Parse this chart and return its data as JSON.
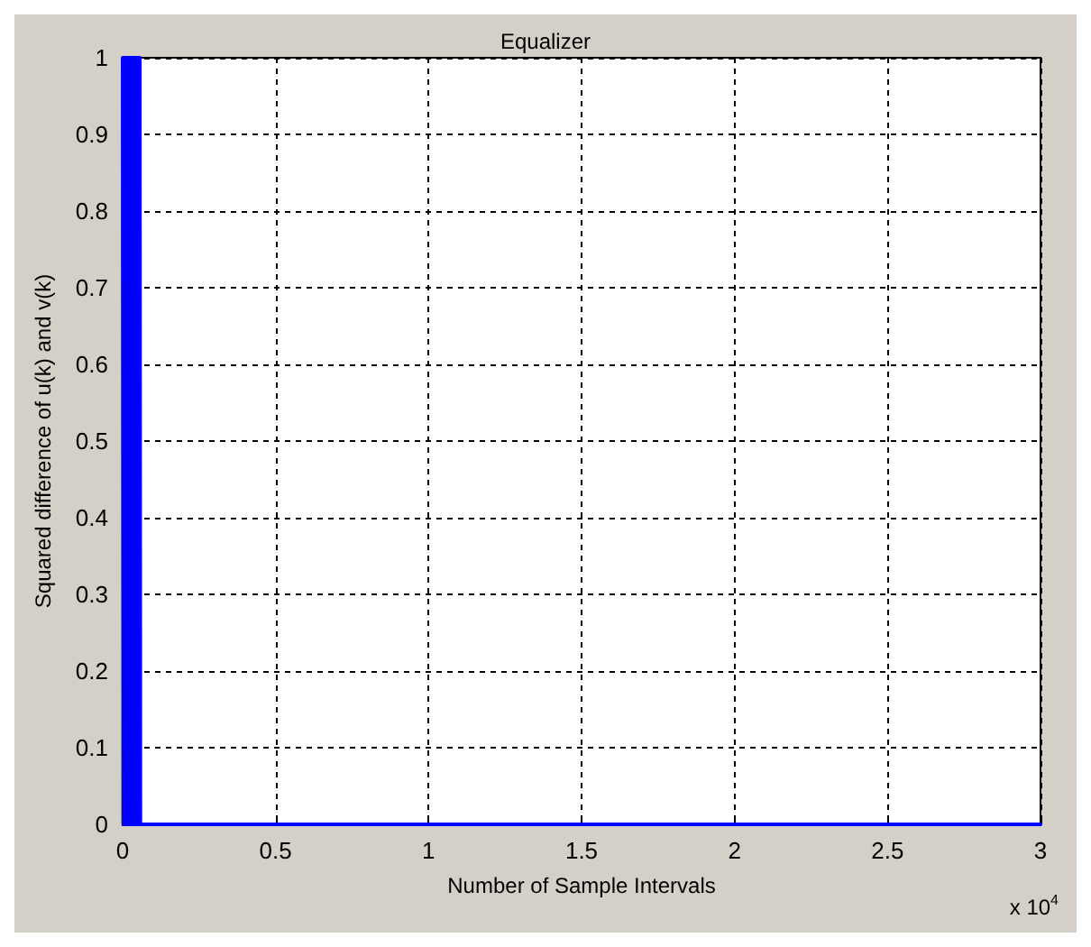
{
  "chart_data": {
    "type": "line",
    "title": "Equalizer",
    "xlabel": "Number of Sample Intervals",
    "ylabel": "Squared difference of u(k) and v(k)",
    "x": [
      0,
      0.002,
      0.004,
      0.006,
      0.008,
      0.01,
      0.012,
      0.014,
      0.016,
      0.018,
      0.02,
      0.022,
      0.024,
      0.026,
      0.028,
      0.03,
      0.032,
      0.034,
      0.036,
      0.038,
      0.04,
      0.042,
      0.044,
      0.046,
      0.048,
      0.05,
      0.052,
      0.054,
      0.056,
      0.058,
      0.06,
      3
    ],
    "series": [
      {
        "color": "#0000ff",
        "values": [
          1,
          0,
          1,
          0,
          1,
          0,
          1,
          0,
          1,
          0,
          1,
          0,
          1,
          0,
          1,
          0,
          1,
          0,
          1,
          0,
          1,
          0,
          1,
          0,
          1,
          0,
          1,
          0,
          1,
          0,
          0,
          0
        ]
      }
    ],
    "xlim": [
      0,
      3
    ],
    "xticks": [
      0,
      0.5,
      1,
      1.5,
      2,
      2.5,
      3
    ],
    "ylim": [
      0,
      1
    ],
    "yticks": [
      0,
      0.1,
      0.2,
      0.3,
      0.4,
      0.5,
      0.6,
      0.7,
      0.8,
      0.9,
      1
    ],
    "annotations": [
      "x 10$^{4}$"
    ],
    "grid": true,
    "line_style": "solid",
    "marker": "none"
  }
}
